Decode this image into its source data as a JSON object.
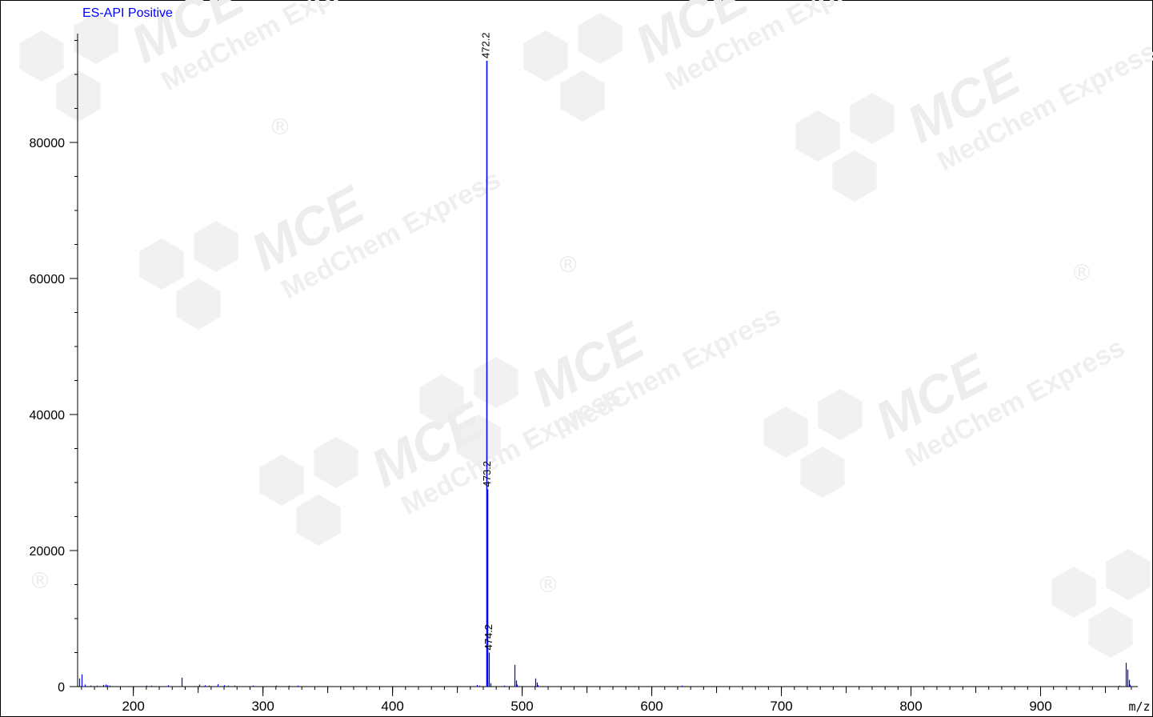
{
  "chart_data": {
    "type": "bar",
    "title": "ES-API Positive",
    "xlabel": "m/z",
    "ylabel": "",
    "xlim": [
      157,
      975
    ],
    "ylim": [
      0,
      96000
    ],
    "x_ticks": [
      200,
      300,
      400,
      500,
      600,
      700,
      800,
      900
    ],
    "y_ticks": [
      0,
      20000,
      40000,
      60000,
      80000
    ],
    "grid": false,
    "colors": {
      "series": "#0000ff",
      "axis": "#000000",
      "title": "#0000ff"
    },
    "peaks": [
      {
        "x": 158.5,
        "y": 1200
      },
      {
        "x": 160.0,
        "y": 1800
      },
      {
        "x": 162.5,
        "y": 300
      },
      {
        "x": 167.0,
        "y": 150
      },
      {
        "x": 172.0,
        "y": 150
      },
      {
        "x": 177.0,
        "y": 250
      },
      {
        "x": 178.5,
        "y": 300
      },
      {
        "x": 180.0,
        "y": 200
      },
      {
        "x": 181.5,
        "y": 150
      },
      {
        "x": 210.0,
        "y": 150
      },
      {
        "x": 214.0,
        "y": 150
      },
      {
        "x": 227.0,
        "y": 200
      },
      {
        "x": 237.0,
        "y": 1300
      },
      {
        "x": 251.0,
        "y": 300
      },
      {
        "x": 255.0,
        "y": 200
      },
      {
        "x": 258.0,
        "y": 150
      },
      {
        "x": 265.0,
        "y": 350
      },
      {
        "x": 270.0,
        "y": 200
      },
      {
        "x": 273.0,
        "y": 150
      },
      {
        "x": 278.0,
        "y": 150
      },
      {
        "x": 292.0,
        "y": 150
      },
      {
        "x": 310.0,
        "y": 150
      },
      {
        "x": 320.0,
        "y": 150
      },
      {
        "x": 327.0,
        "y": 150
      },
      {
        "x": 465.0,
        "y": 250
      },
      {
        "x": 467.0,
        "y": 150
      },
      {
        "x": 472.2,
        "y": 92000
      },
      {
        "x": 473.2,
        "y": 29000
      },
      {
        "x": 474.2,
        "y": 5000
      },
      {
        "x": 475.5,
        "y": 500
      },
      {
        "x": 486.0,
        "y": 150
      },
      {
        "x": 494.0,
        "y": 3200
      },
      {
        "x": 495.2,
        "y": 900
      },
      {
        "x": 496.2,
        "y": 300
      },
      {
        "x": 510.0,
        "y": 1200
      },
      {
        "x": 511.2,
        "y": 600
      },
      {
        "x": 512.0,
        "y": 200
      },
      {
        "x": 623.0,
        "y": 150
      },
      {
        "x": 961.0,
        "y": 150
      },
      {
        "x": 966.0,
        "y": 3500
      },
      {
        "x": 967.0,
        "y": 2500
      },
      {
        "x": 968.0,
        "y": 1000
      },
      {
        "x": 969.0,
        "y": 300
      }
    ],
    "annotations": [
      {
        "x": 472.2,
        "y": 92000,
        "label": "472.2"
      },
      {
        "x": 473.2,
        "y": 29000,
        "label": "473.2"
      },
      {
        "x": 474.2,
        "y": 5000,
        "label": "474.2"
      }
    ]
  },
  "watermark": {
    "brand": "MCE",
    "sub": "MedChem Express",
    "mark": "®"
  }
}
